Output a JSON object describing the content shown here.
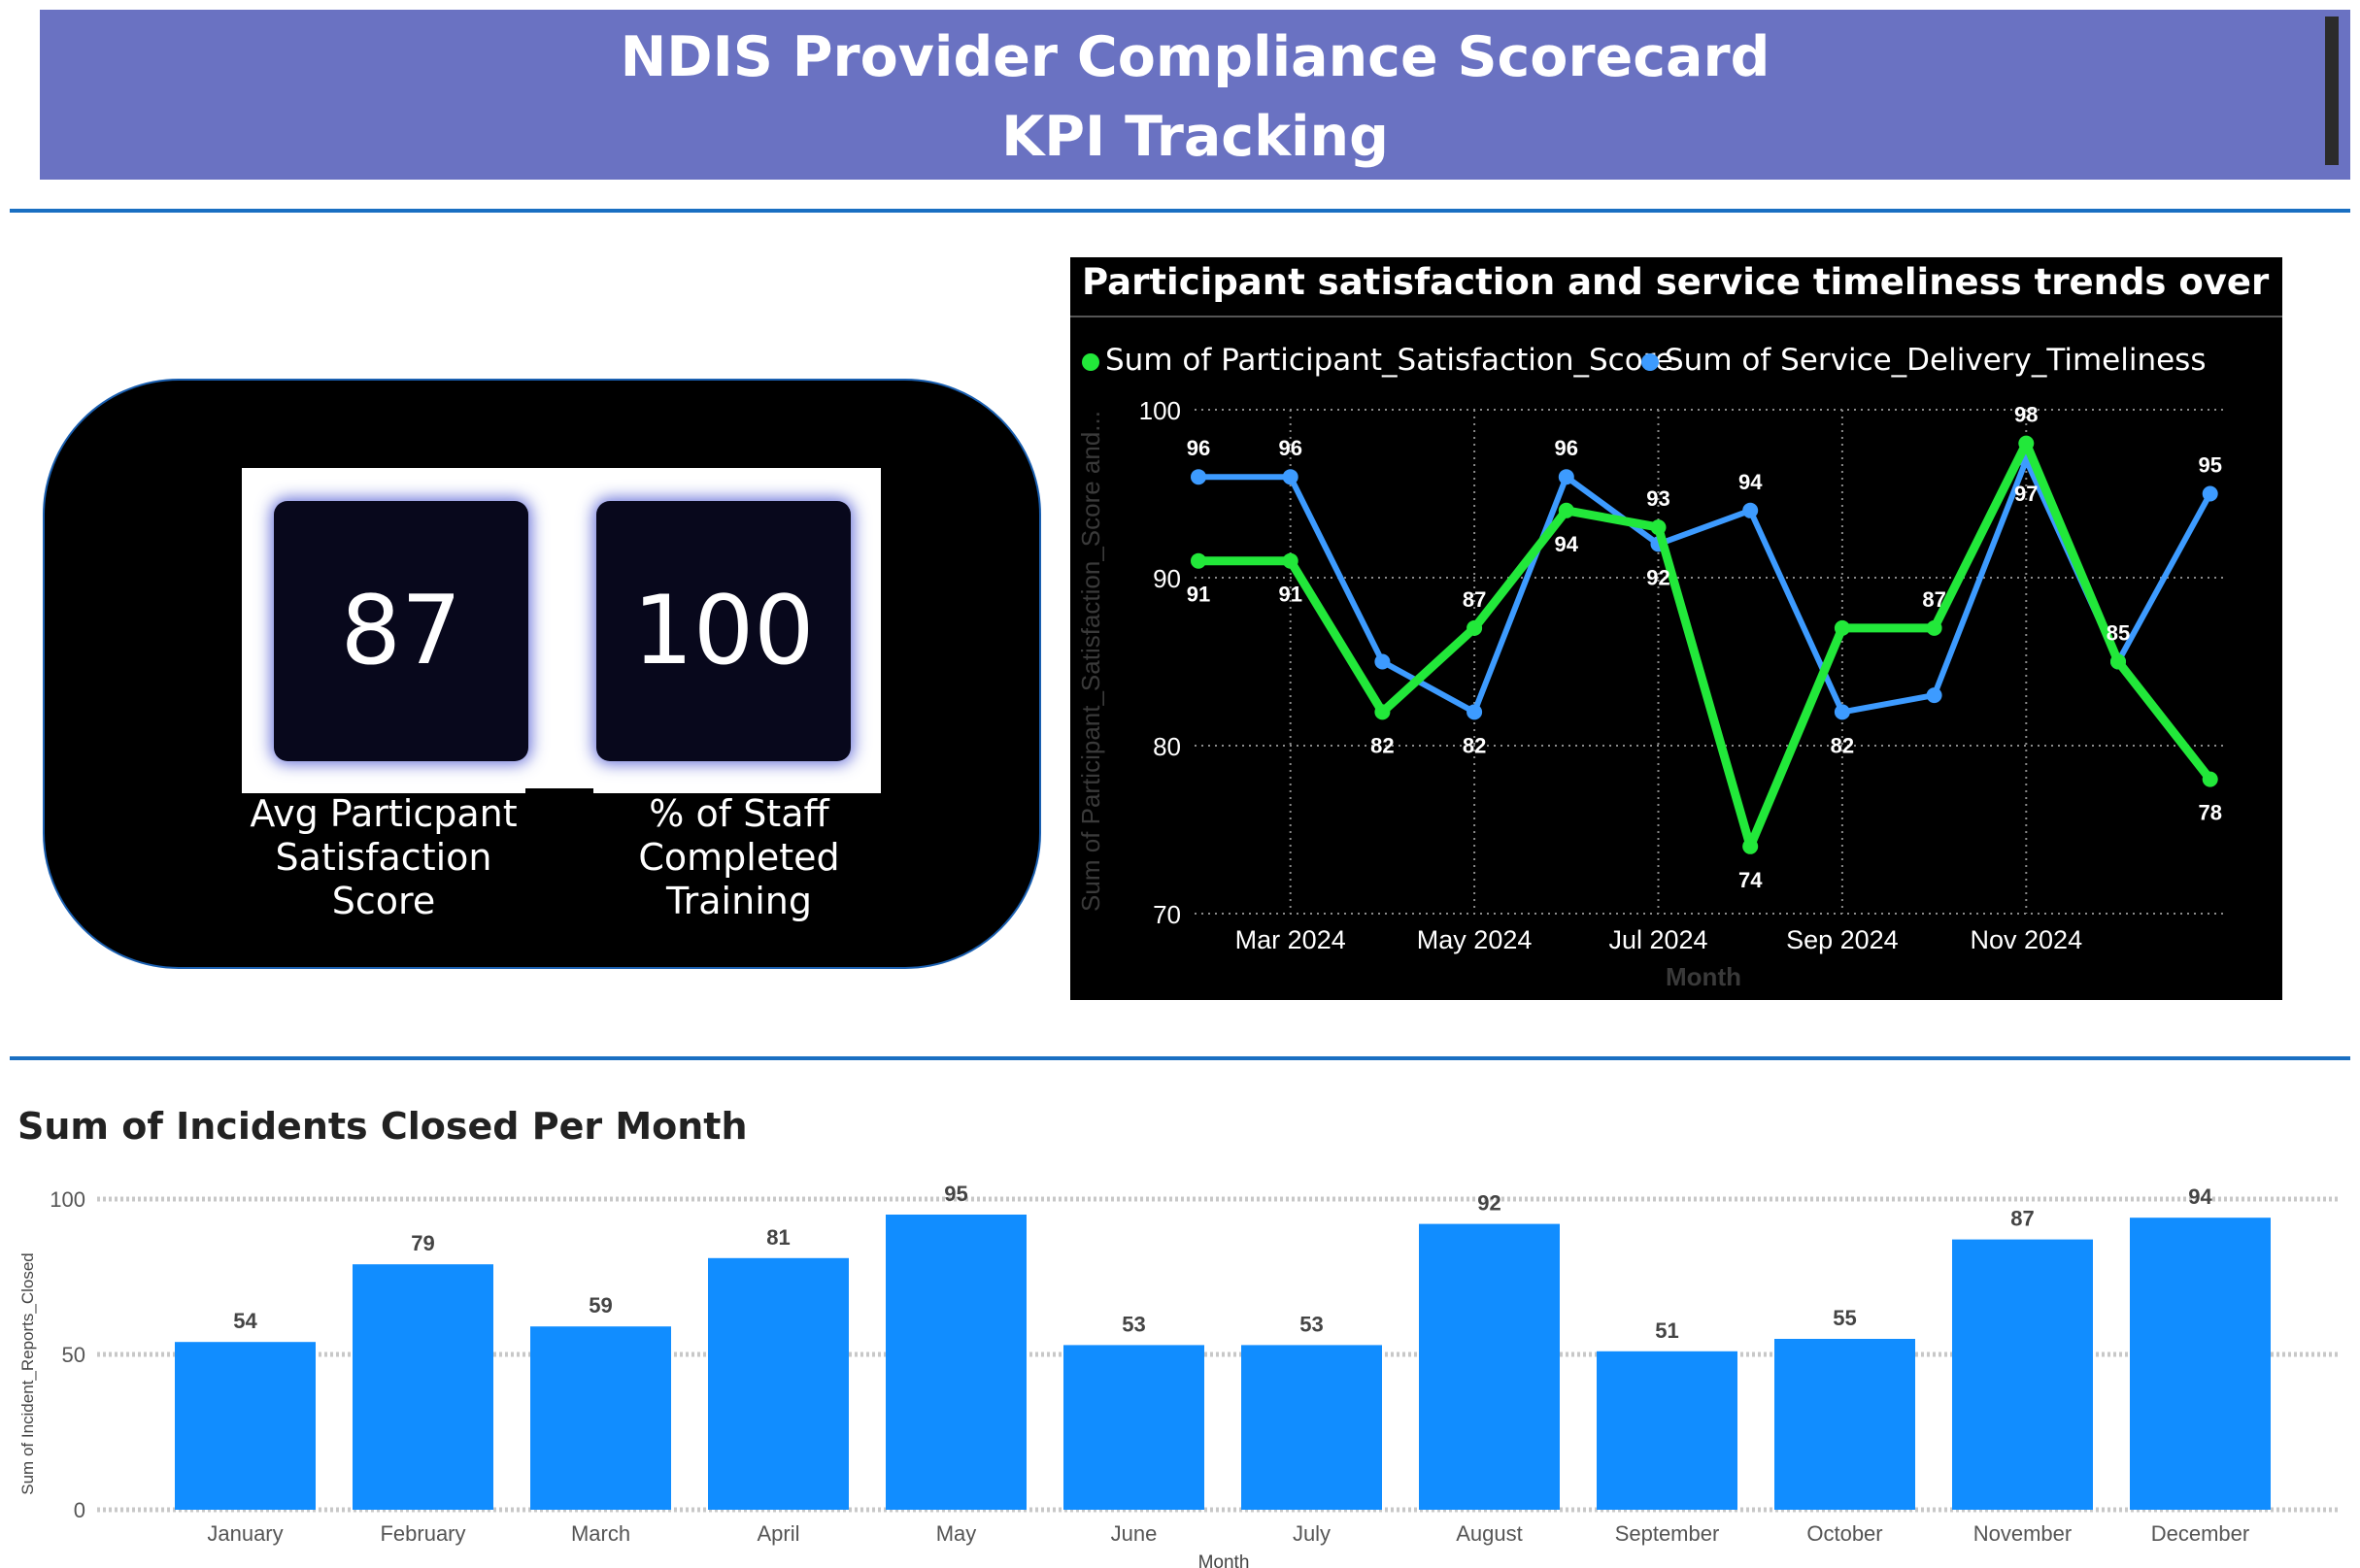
{
  "header": {
    "title": "NDIS Provider Compliance Scorecard",
    "subtitle": "KPI Tracking"
  },
  "kpis": [
    {
      "value": "87",
      "label_lines": [
        "Avg Particpant",
        "Satisfaction",
        "Score"
      ]
    },
    {
      "value": "100",
      "label_lines": [
        "% of Staff",
        "Completed",
        "Training"
      ]
    }
  ],
  "chart_data": [
    {
      "type": "line",
      "title": "Participant satisfaction and service timeliness trends over months.",
      "xlabel": "Month",
      "ylabel": "Sum of Participant_Satisfaction_Score and...",
      "ylim": [
        70,
        100
      ],
      "yticks": [
        "70",
        "80",
        "90",
        "100"
      ],
      "xticks": [
        "Mar 2024",
        "May 2024",
        "Jul 2024",
        "Sep 2024",
        "Nov 2024"
      ],
      "x": [
        "Feb 2024",
        "Mar 2024",
        "Apr 2024",
        "May 2024",
        "Jun 2024",
        "Jul 2024",
        "Aug 2024",
        "Sep 2024",
        "Oct 2024",
        "Nov 2024",
        "Dec 2024",
        "Jan 2025"
      ],
      "series": [
        {
          "name": "Sum of Participant_Satisfaction_Score",
          "color": "#22e83a",
          "values": [
            91,
            91,
            82,
            87,
            94,
            93,
            74,
            87,
            87,
            98,
            85,
            78
          ],
          "labels": [
            "91",
            "91",
            "82",
            "87",
            "94",
            "93",
            "74",
            "",
            "87",
            "98",
            "85",
            "78"
          ]
        },
        {
          "name": "Sum of Service_Delivery_Timeliness",
          "color": "#3d9bff",
          "values": [
            96,
            96,
            85,
            82,
            96,
            92,
            94,
            82,
            83,
            97,
            85,
            95
          ],
          "labels": [
            "96",
            "96",
            "",
            "82",
            "96",
            "92",
            "94",
            "82",
            "",
            "97",
            "",
            "95"
          ]
        }
      ]
    },
    {
      "type": "bar",
      "title": "Sum of Incidents Closed Per Month",
      "xlabel": "Month",
      "ylabel": "Sum of Incident_Reports_Closed",
      "ylim": [
        0,
        100
      ],
      "yticks": [
        "0",
        "50",
        "100"
      ],
      "categories": [
        "January",
        "February",
        "March",
        "April",
        "May",
        "June",
        "July",
        "August",
        "September",
        "October",
        "November",
        "December"
      ],
      "values": [
        54,
        79,
        59,
        81,
        95,
        53,
        53,
        92,
        51,
        55,
        87,
        94
      ],
      "color": "#118dff"
    }
  ]
}
